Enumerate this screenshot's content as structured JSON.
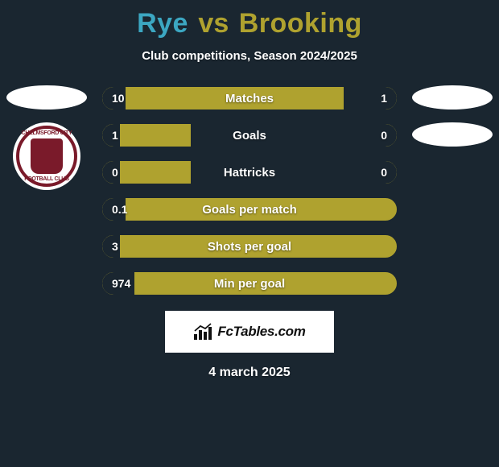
{
  "background_color": "#1a2630",
  "title": {
    "player1": {
      "name": "Rye",
      "color": "#3ca7c2"
    },
    "separator": {
      "text": "vs",
      "color": "#afa22f"
    },
    "player2": {
      "name": "Brooking",
      "color": "#afa22f"
    },
    "fontsize": 34
  },
  "subtitle": "Club competitions, Season 2024/2025",
  "avatars": {
    "left_club": {
      "ring_color": "#7a1a2a",
      "shield_color": "#7a1a2a",
      "text_top": "CHELMSFORD CITY",
      "text_bottom": "FOOTBALL CLUB"
    }
  },
  "bar_style": {
    "fill_color": "#afa22f",
    "empty_color": "#1a2630",
    "border_radius": 16,
    "height": 32,
    "text_color": "#ffffff",
    "label_fontsize": 15,
    "value_fontsize": 14
  },
  "stats": [
    {
      "label": "Matches",
      "left_val": "10",
      "right_val": "1",
      "left_pct": 8,
      "right_pct": 18
    },
    {
      "label": "Goals",
      "left_val": "1",
      "right_val": "0",
      "left_pct": 6,
      "right_pct": 70
    },
    {
      "label": "Hattricks",
      "left_val": "0",
      "right_val": "0",
      "left_pct": 6,
      "right_pct": 70
    },
    {
      "label": "Goals per match",
      "left_val": "0.1",
      "right_val": "",
      "left_pct": 8,
      "right_pct": 0
    },
    {
      "label": "Shots per goal",
      "left_val": "3",
      "right_val": "",
      "left_pct": 6,
      "right_pct": 0
    },
    {
      "label": "Min per goal",
      "left_val": "974",
      "right_val": "",
      "left_pct": 11,
      "right_pct": 0
    }
  ],
  "logo": {
    "text": "FcTables.com",
    "box_bg": "#ffffff",
    "text_color": "#111111",
    "icon_color": "#111111"
  },
  "date": "4 march 2025"
}
